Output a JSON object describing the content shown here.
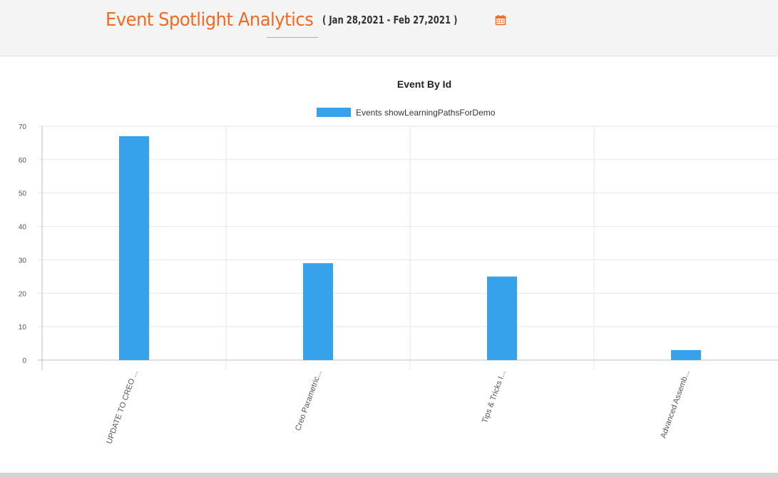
{
  "header": {
    "title": "Event Spotlight Analytics",
    "date_range": "( Jan 28,2021 - Feb 27,2021 )",
    "calendar_icon": "calendar-icon",
    "title_color": "#f26a21"
  },
  "chart_data": {
    "type": "bar",
    "title": "Event By Id",
    "categories": [
      "UPDATE TO CREO ...",
      "Creo Parametric...",
      "Tips & Tricks I...",
      "Advanced Assemb..."
    ],
    "series": [
      {
        "name": "Events showLearningPathsForDemo",
        "values": [
          67,
          29,
          25,
          3
        ],
        "color": "#36a2eb"
      }
    ],
    "xlabel": "",
    "ylabel": "",
    "ylim": [
      0,
      70
    ],
    "yticks": [
      0,
      10,
      20,
      30,
      40,
      50,
      60,
      70
    ],
    "grid": true,
    "legend": "top-center"
  }
}
